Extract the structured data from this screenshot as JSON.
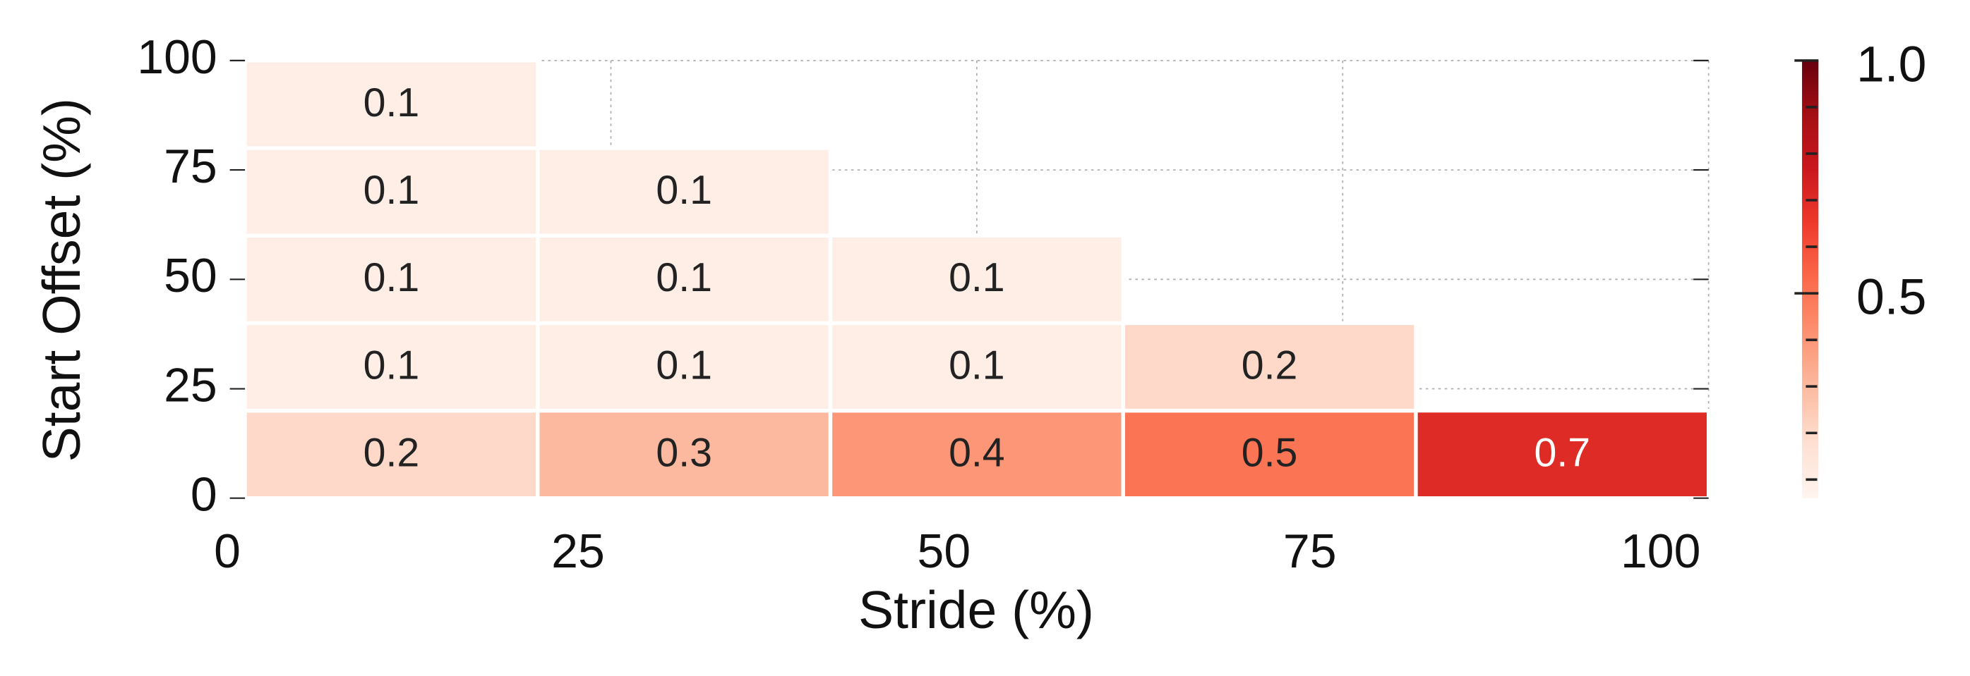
{
  "chart_data": {
    "type": "heatmap",
    "x_label": "Stride (%)",
    "y_label": "Start Offset (%)",
    "x_bins": [
      0,
      20,
      40,
      60,
      80,
      100
    ],
    "y_bins": [
      0,
      20,
      40,
      60,
      80,
      100
    ],
    "values": [
      [
        0.2,
        0.3,
        0.4,
        0.5,
        0.7
      ],
      [
        0.1,
        0.1,
        0.1,
        0.2,
        null
      ],
      [
        0.1,
        0.1,
        0.1,
        null,
        null
      ],
      [
        0.1,
        0.1,
        null,
        null,
        null
      ],
      [
        0.1,
        null,
        null,
        null,
        null
      ]
    ],
    "xlim": [
      0,
      100
    ],
    "ylim": [
      0,
      100
    ],
    "xticks": [
      0,
      25,
      50,
      75,
      100
    ],
    "yticks": [
      0,
      25,
      50,
      75,
      100
    ],
    "grid": true,
    "colormap": [
      "#fff5f0",
      "#fee0d2",
      "#fcbba1",
      "#fc9272",
      "#fb6a4a",
      "#ef3b2c",
      "#cb181d",
      "#a50f15",
      "#67000d"
    ],
    "clim": [
      0.06,
      1.0
    ],
    "cticks": [
      0.5,
      {
        "value": 1.0,
        "label": "1.0"
      }
    ],
    "cticks_minor": [
      0.1,
      0.2,
      0.3,
      0.4,
      0.6,
      0.7,
      0.8,
      0.9
    ]
  }
}
